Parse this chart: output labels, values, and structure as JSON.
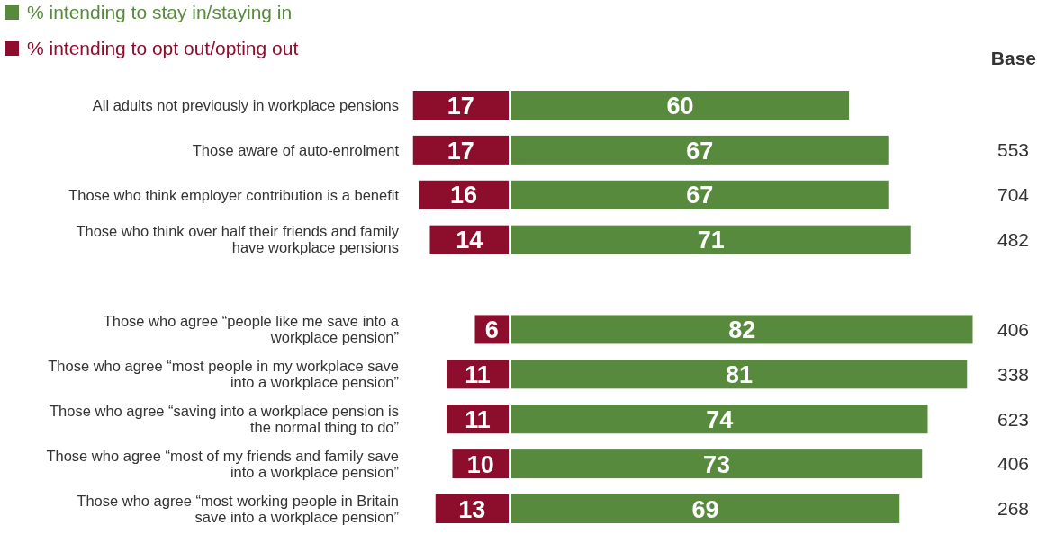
{
  "chart_data": [
    {
      "type": "bar",
      "orientation": "horizontal",
      "categories": [
        "All adults not previously in workplace pensions",
        "Those aware of auto-enrolment",
        "Those who think employer contribution is a benefit",
        "Those who think over half their friends and family have workplace pensions",
        null,
        "Those who agree “people like me save into a workplace pension”",
        "Those who agree “most people in my workplace save into a workplace pension”",
        "Those who agree “saving into a workplace pension is the normal thing to do”",
        "Those who agree “most of my friends and family save into a workplace pension”",
        "Those who agree “most working people in Britain save into a workplace pension”"
      ],
      "series": [
        {
          "name": "% intending to opt out/opting out",
          "color": "#8c0d2c",
          "values": [
            17,
            17,
            16,
            14,
            null,
            6,
            11,
            11,
            10,
            13
          ]
        }
      ],
      "xlim": [
        17,
        0
      ],
      "data_labels": true,
      "tick_labels": "y",
      "legend": "top left"
    },
    {
      "type": "bar",
      "orientation": "horizontal",
      "series": [
        {
          "name": "% intending to stay in/staying in",
          "color": "#588a3e",
          "values": [
            60,
            67,
            67,
            71,
            null,
            82,
            81,
            74,
            73,
            69
          ]
        }
      ],
      "xlim": [
        0,
        82
      ],
      "data_labels": true,
      "tick_labels": false,
      "legend": "top left",
      "annotations": [
        "Base",
        "553",
        "704",
        "482",
        "406",
        "338",
        "623",
        "406",
        "268"
      ]
    }
  ]
}
